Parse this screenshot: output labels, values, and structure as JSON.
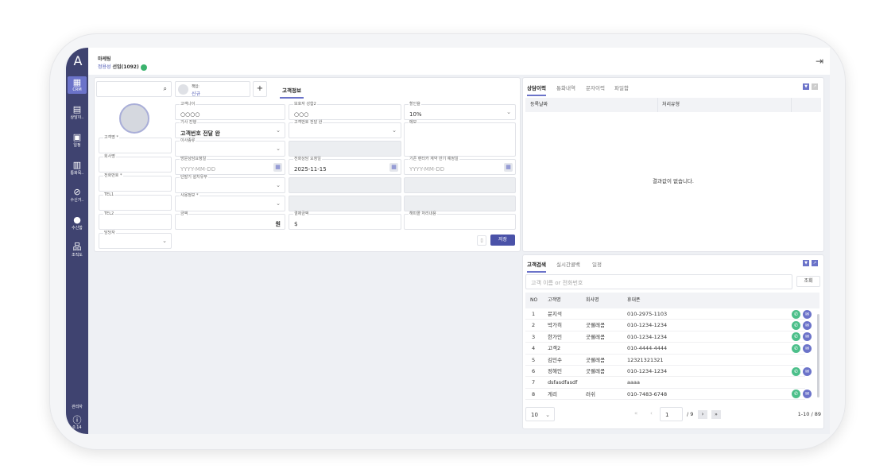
{
  "app": {
    "logo": "A",
    "department": "마케팅",
    "user_name": "정용성",
    "user_role": "선임(1092)",
    "logout_icon": "logout-icon"
  },
  "sidebar": {
    "items": [
      {
        "label": "CRM",
        "icon": "grid-icon"
      },
      {
        "label": "상담이..",
        "icon": "chat-icon"
      },
      {
        "label": "일정",
        "icon": "calendar-icon"
      },
      {
        "label": "통화목..",
        "icon": "list-icon"
      },
      {
        "label": "수신거..",
        "icon": "block-icon"
      },
      {
        "label": "수신함",
        "icon": "message-icon"
      },
      {
        "label": "조직도",
        "icon": "org-icon"
      }
    ],
    "admin": "관리자",
    "version": "0.14"
  },
  "customer": {
    "search_placeholder": "",
    "assignee_label": "책임:",
    "assignee_value": "신규",
    "tab": "고객정보",
    "left_fields": [
      {
        "label": "고객명 *",
        "value": ""
      },
      {
        "label": "회사명",
        "value": ""
      },
      {
        "label": "전화번호 *",
        "value": ""
      },
      {
        "label": "TEL1",
        "value": ""
      },
      {
        "label": "TEL2",
        "value": ""
      },
      {
        "label": "담당자",
        "value": ""
      }
    ],
    "fields": {
      "age": {
        "label": "고객나이",
        "value": "○○○○"
      },
      "guardian": {
        "label": "보호자 성함2",
        "value": "○○○"
      },
      "discount": {
        "label": "할인율",
        "value": "10%"
      },
      "progress": {
        "label": "기사 진행",
        "value": "고객번호 전달 완"
      },
      "customer_no": {
        "label": "고객번호 전달 완",
        "value": ""
      },
      "memo": {
        "label": "메모",
        "value": ""
      },
      "move_type": {
        "label": "이사종류",
        "value": ""
      },
      "visit_date": {
        "label": "방문상담요청일",
        "placeholder": "YYYY-MM-DD"
      },
      "call_date": {
        "label": "전화상담 요청일",
        "value": "2025-11-15"
      },
      "rental_date": {
        "label": "기존 렌터카 계약 만기 예정일",
        "placeholder": "YYYY-MM-DD"
      },
      "terminal": {
        "label": "단말기 설치유무",
        "value": ""
      },
      "usage": {
        "label": "사용정보 *",
        "value": ""
      },
      "amount": {
        "label": "금액",
        "unit": "원"
      },
      "payment": {
        "label": "결제금액",
        "value": "$"
      },
      "happycall": {
        "label": "해피콜 처리내용",
        "value": ""
      }
    },
    "save_label": "저장"
  },
  "history": {
    "tabs": [
      "상담이력",
      "통화내역",
      "문자이력",
      "파일함"
    ],
    "columns": [
      "등록날짜",
      "처리유형"
    ],
    "empty": "결과값이 없습니다."
  },
  "search": {
    "tabs": [
      "고객검색",
      "실시간콜백",
      "일정"
    ],
    "placeholder": "고객 이름 or 전화번호",
    "button": "조회",
    "columns": [
      "NO",
      "고객명",
      "회사명",
      "휴대폰"
    ],
    "rows": [
      {
        "no": "1",
        "name": "문지석",
        "company": "",
        "phone": "010-2975-1103",
        "actions": true
      },
      {
        "no": "2",
        "name": "박가히",
        "company": "굿웰레콤",
        "phone": "010-1234-1234",
        "actions": true
      },
      {
        "no": "3",
        "name": "한가인",
        "company": "굿웰레콤",
        "phone": "010-1234-1234",
        "actions": true
      },
      {
        "no": "4",
        "name": "고객2",
        "company": "",
        "phone": "010-4444-4444",
        "actions": true
      },
      {
        "no": "5",
        "name": "김민수",
        "company": "굿웰레콤",
        "phone": "12321321321",
        "actions": false
      },
      {
        "no": "6",
        "name": "정해인",
        "company": "굿웰레콤",
        "phone": "010-1234-1234",
        "actions": true
      },
      {
        "no": "7",
        "name": "dsfasdfasdf",
        "company": "",
        "phone": "aaaa",
        "actions": false
      },
      {
        "no": "8",
        "name": "게리",
        "company": "러쉬",
        "phone": "010-7483-6748",
        "actions": true
      }
    ],
    "page_size": "10",
    "page": "1",
    "total_pages": "/ 9",
    "range": "1-10 / 89"
  },
  "colors": {
    "sidebar": "#3f4370",
    "accent": "#6b73c9",
    "call": "#4cbf8a",
    "mail": "#6b73c9"
  }
}
